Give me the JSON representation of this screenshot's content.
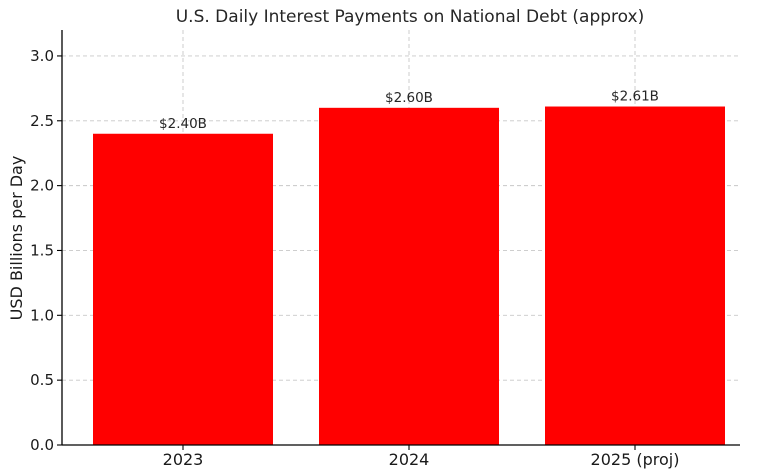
{
  "chart_data": {
    "type": "bar",
    "title": "U.S. Daily Interest Payments on National Debt (approx)",
    "xlabel": "",
    "ylabel": "USD Billions per Day",
    "categories": [
      "2023",
      "2024",
      "2025 (proj)"
    ],
    "values": [
      2.4,
      2.6,
      2.61
    ],
    "data_labels": [
      "$2.40B",
      "$2.60B",
      "$2.61B"
    ],
    "ylim": [
      0,
      3.2
    ],
    "yticks": [
      0.0,
      0.5,
      1.0,
      1.5,
      2.0,
      2.5,
      3.0
    ],
    "ytick_labels": [
      "0.0",
      "0.5",
      "1.0",
      "1.5",
      "2.0",
      "2.5",
      "3.0"
    ],
    "grid": true,
    "bar_color": "#ff0000"
  }
}
